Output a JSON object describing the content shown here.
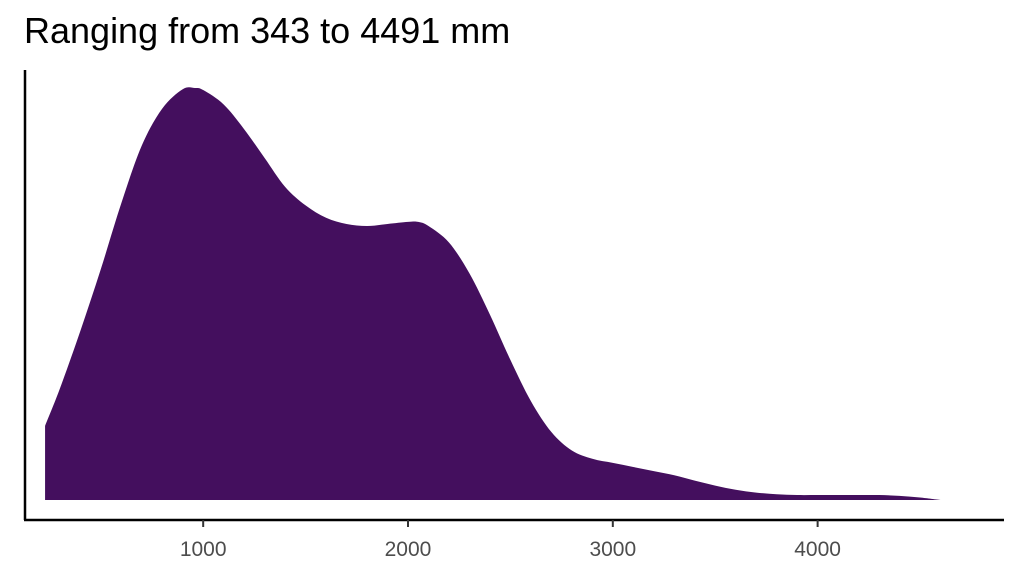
{
  "chart_data": {
    "type": "area",
    "title": "Ranging from 343 to 4491 mm",
    "xlabel": "",
    "ylabel": "",
    "xlim": [
      130,
      4910
    ],
    "ylim": [
      0,
      1
    ],
    "x_ticks": [
      1000,
      2000,
      3000,
      4000
    ],
    "y_ticks": [],
    "grid": false,
    "legend": "none",
    "fill_color": "#440f5e",
    "series": [
      {
        "x": [
          228,
          300,
          400,
          500,
          600,
          700,
          800,
          900,
          960,
          1000,
          1100,
          1200,
          1300,
          1400,
          1500,
          1600,
          1700,
          1800,
          1900,
          2000,
          2050,
          2100,
          2200,
          2300,
          2400,
          2500,
          2600,
          2700,
          2800,
          2900,
          3000,
          3100,
          3200,
          3300,
          3400,
          3500,
          3600,
          3700,
          3800,
          3900,
          4000,
          4100,
          4200,
          4300,
          4400,
          4500,
          4600
        ],
        "y": [
          0.18,
          0.27,
          0.41,
          0.56,
          0.72,
          0.86,
          0.95,
          0.997,
          1.0,
          0.995,
          0.96,
          0.9,
          0.83,
          0.76,
          0.715,
          0.685,
          0.67,
          0.665,
          0.67,
          0.675,
          0.675,
          0.665,
          0.625,
          0.55,
          0.45,
          0.34,
          0.24,
          0.165,
          0.12,
          0.1,
          0.09,
          0.08,
          0.07,
          0.06,
          0.047,
          0.035,
          0.025,
          0.018,
          0.014,
          0.012,
          0.012,
          0.012,
          0.012,
          0.012,
          0.01,
          0.006,
          0.0
        ]
      }
    ]
  }
}
